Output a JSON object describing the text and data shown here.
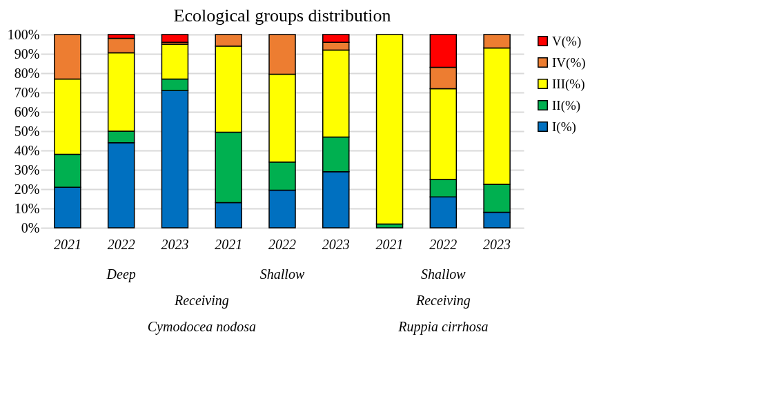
{
  "chart_data": {
    "type": "bar",
    "title": "Ecological  groups distribution",
    "categories": [
      "2021",
      "2022",
      "2023",
      "2021",
      "2022",
      "2023",
      "2021",
      "2022",
      "2023"
    ],
    "stacked": true,
    "series": [
      {
        "name": "I(%)",
        "color": "#0070c0",
        "values": [
          21,
          44,
          71,
          13,
          19.5,
          29,
          0,
          16,
          8
        ]
      },
      {
        "name": "II(%)",
        "color": "#00b050",
        "values": [
          17,
          6,
          6,
          36.5,
          14.5,
          18,
          2,
          9,
          14.5
        ]
      },
      {
        "name": "III(%)",
        "color": "#ffff00",
        "values": [
          39,
          40.5,
          18,
          44.5,
          45.5,
          45,
          98,
          47,
          70.5
        ]
      },
      {
        "name": "IV(%)",
        "color": "#ed7d31",
        "values": [
          23,
          7.5,
          1,
          6,
          20.5,
          4,
          0,
          11,
          7
        ]
      },
      {
        "name": "V(%)",
        "color": "#ff0000",
        "values": [
          0,
          2,
          4,
          0,
          0,
          4,
          0,
          17,
          0
        ]
      }
    ],
    "ylim": [
      0,
      100
    ],
    "yticks": [
      {
        "value": 0,
        "label": "0%"
      },
      {
        "value": 10,
        "label": "10%"
      },
      {
        "value": 20,
        "label": "20%"
      },
      {
        "value": 30,
        "label": "30%"
      },
      {
        "value": 40,
        "label": "40%"
      },
      {
        "value": 50,
        "label": "50%"
      },
      {
        "value": 60,
        "label": "60%"
      },
      {
        "value": 70,
        "label": "70%"
      },
      {
        "value": 80,
        "label": "80%"
      },
      {
        "value": 90,
        "label": "90%"
      },
      {
        "value": 100,
        "label": "100%"
      }
    ],
    "grid": "y",
    "legend": "right",
    "annotations": [
      "Deep",
      "Shallow",
      "Shallow",
      "Receiving",
      "Receiving",
      "Cymodocea nodosa",
      "Ruppia cirrhosa"
    ]
  }
}
